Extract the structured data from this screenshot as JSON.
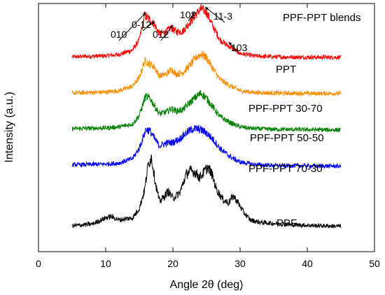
{
  "chart_data": {
    "type": "line",
    "title": "PPF-PPT blends",
    "xlabel": "Angle 2θ (deg)",
    "ylabel": "Intensity (a.u.)",
    "xlim": [
      0,
      50
    ],
    "xticks": [
      0,
      10,
      20,
      30,
      40,
      50
    ],
    "ylim": [
      0,
      7.2
    ],
    "yticks_shown": false,
    "grid": false,
    "series": [
      {
        "name": "PPT",
        "color": "#ff0000",
        "offset": 5.6,
        "x": [
          5,
          8,
          10,
          12,
          14,
          15,
          15.8,
          16.5,
          17.2,
          18,
          19,
          19.7,
          20.5,
          21.5,
          22.5,
          23.5,
          24.2,
          25,
          26,
          27,
          28,
          29,
          30,
          32,
          35,
          40,
          45
        ],
        "y": [
          0.05,
          0.07,
          0.08,
          0.12,
          0.25,
          0.55,
          1.25,
          1.15,
          1.0,
          0.72,
          0.78,
          0.9,
          0.78,
          0.8,
          1.05,
          1.3,
          1.45,
          1.35,
          0.92,
          0.55,
          0.4,
          0.28,
          0.15,
          0.08,
          0.05,
          0.04,
          0.04
        ]
      },
      {
        "name": "PPF-PPT 30-70",
        "color": "#ff8c00",
        "offset": 4.55,
        "x": [
          5,
          8,
          10,
          12,
          14,
          15,
          15.8,
          16.5,
          17.2,
          18,
          19,
          19.8,
          20.5,
          21.5,
          22.5,
          23.5,
          24.2,
          25,
          26,
          27,
          28,
          29,
          30,
          32,
          35,
          40,
          45
        ],
        "y": [
          0.05,
          0.07,
          0.08,
          0.12,
          0.25,
          0.5,
          0.98,
          0.9,
          0.82,
          0.55,
          0.6,
          0.74,
          0.6,
          0.65,
          0.85,
          1.1,
          1.18,
          1.08,
          0.75,
          0.45,
          0.32,
          0.22,
          0.12,
          0.07,
          0.05,
          0.04,
          0.04
        ]
      },
      {
        "name": "PPF-PPT 50-50",
        "color": "#008000",
        "offset": 3.5,
        "x": [
          5,
          8,
          10,
          12,
          14,
          15,
          15.9,
          16.6,
          17.3,
          18,
          19,
          19.8,
          20.5,
          21.5,
          22.5,
          23.5,
          24.2,
          25,
          26,
          27,
          28,
          29,
          30,
          32,
          35,
          40,
          45
        ],
        "y": [
          0.07,
          0.08,
          0.09,
          0.12,
          0.2,
          0.45,
          1.0,
          0.95,
          0.72,
          0.5,
          0.55,
          0.65,
          0.58,
          0.62,
          0.82,
          1.0,
          1.1,
          0.95,
          0.68,
          0.42,
          0.3,
          0.2,
          0.12,
          0.07,
          0.05,
          0.04,
          0.03
        ]
      },
      {
        "name": "PPF-PPT 70-30",
        "color": "#0000ff",
        "offset": 2.45,
        "x": [
          5,
          8,
          10,
          12,
          14,
          15,
          16,
          16.6,
          17.3,
          18,
          19,
          20,
          21,
          22,
          23,
          24,
          25,
          26,
          27,
          28,
          29,
          30,
          32,
          35,
          40,
          45
        ],
        "y": [
          0.07,
          0.08,
          0.09,
          0.12,
          0.25,
          0.55,
          1.1,
          1.05,
          0.82,
          0.62,
          0.7,
          0.72,
          0.82,
          1.0,
          1.12,
          1.1,
          1.0,
          0.8,
          0.55,
          0.38,
          0.25,
          0.15,
          0.08,
          0.05,
          0.04,
          0.03
        ]
      },
      {
        "name": "PPF",
        "color": "#000000",
        "offset": 0.7,
        "x": [
          5,
          8,
          10,
          10.8,
          12,
          14,
          15,
          15.8,
          16.3,
          16.8,
          17.4,
          18,
          18.5,
          19.3,
          20,
          21,
          22,
          22.6,
          23.3,
          24,
          24.6,
          25.2,
          25.8,
          26.5,
          27.5,
          28.3,
          29,
          29.7,
          30.5,
          31.5,
          33,
          35,
          38,
          42,
          45
        ],
        "y": [
          0.05,
          0.1,
          0.28,
          0.32,
          0.22,
          0.28,
          0.55,
          1.1,
          1.8,
          2.05,
          1.3,
          0.75,
          0.85,
          1.05,
          0.85,
          1.0,
          1.55,
          1.65,
          1.6,
          1.45,
          1.6,
          1.75,
          1.55,
          1.1,
          0.8,
          0.72,
          0.92,
          0.72,
          0.45,
          0.22,
          0.15,
          0.12,
          0.08,
          0.05,
          0.04
        ]
      }
    ],
    "annotations": [
      {
        "text": "010",
        "x": 16.0
      },
      {
        "text": "0-12",
        "x": 17.3
      },
      {
        "text": "012",
        "x": 20.0
      },
      {
        "text": "102",
        "x": 23.2
      },
      {
        "text": "11-3",
        "x": 24.8
      },
      {
        "text": "103",
        "x": 28.3
      }
    ]
  }
}
